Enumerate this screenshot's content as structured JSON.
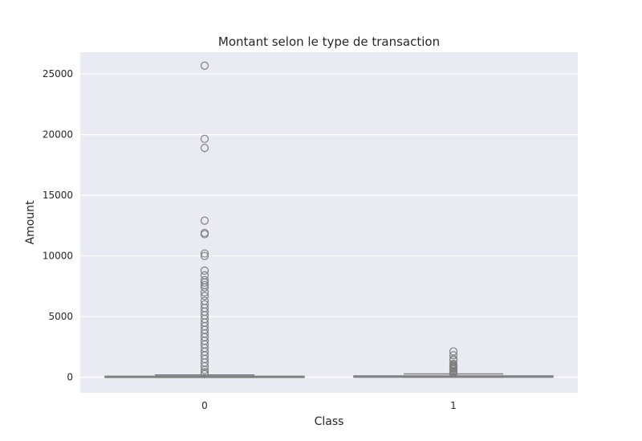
{
  "chart_data": {
    "type": "box",
    "title": "Montant selon le type de transaction",
    "xlabel": "Class",
    "ylabel": "Amount",
    "categories": [
      "0",
      "1"
    ],
    "ylim": [
      -1290,
      26800
    ],
    "yticks": [
      0,
      5000,
      10000,
      15000,
      20000,
      25000
    ],
    "grid": true,
    "colors": {
      "plot_background": "#eaeaf2",
      "grid": "#ffffff",
      "box_fill": "#d3d3d3",
      "box_edge": "#808080",
      "text": "#262626"
    },
    "boxes": [
      {
        "category": "0",
        "min": 0,
        "q1": 5,
        "median": 22,
        "q3": 77,
        "max": 185,
        "outliers": [
          25691,
          19656,
          18910,
          12910,
          11898,
          11790,
          10200,
          10000,
          8790,
          8400,
          8000,
          7800,
          7600,
          7400,
          7000,
          6700,
          6300,
          6000,
          5700,
          5400,
          5100,
          4800,
          4500,
          4200,
          3900,
          3600,
          3300,
          3000,
          2700,
          2400,
          2100,
          1800,
          1500,
          1200,
          900,
          600,
          400,
          250
        ]
      },
      {
        "category": "1",
        "min": 0,
        "q1": 1,
        "median": 9,
        "q3": 106,
        "max": 265,
        "outliers": [
          2125,
          1809,
          1504,
          1402,
          1096,
          996,
          925,
          829,
          776,
          720,
          635,
          512,
          454,
          390,
          318,
          289
        ]
      }
    ]
  }
}
